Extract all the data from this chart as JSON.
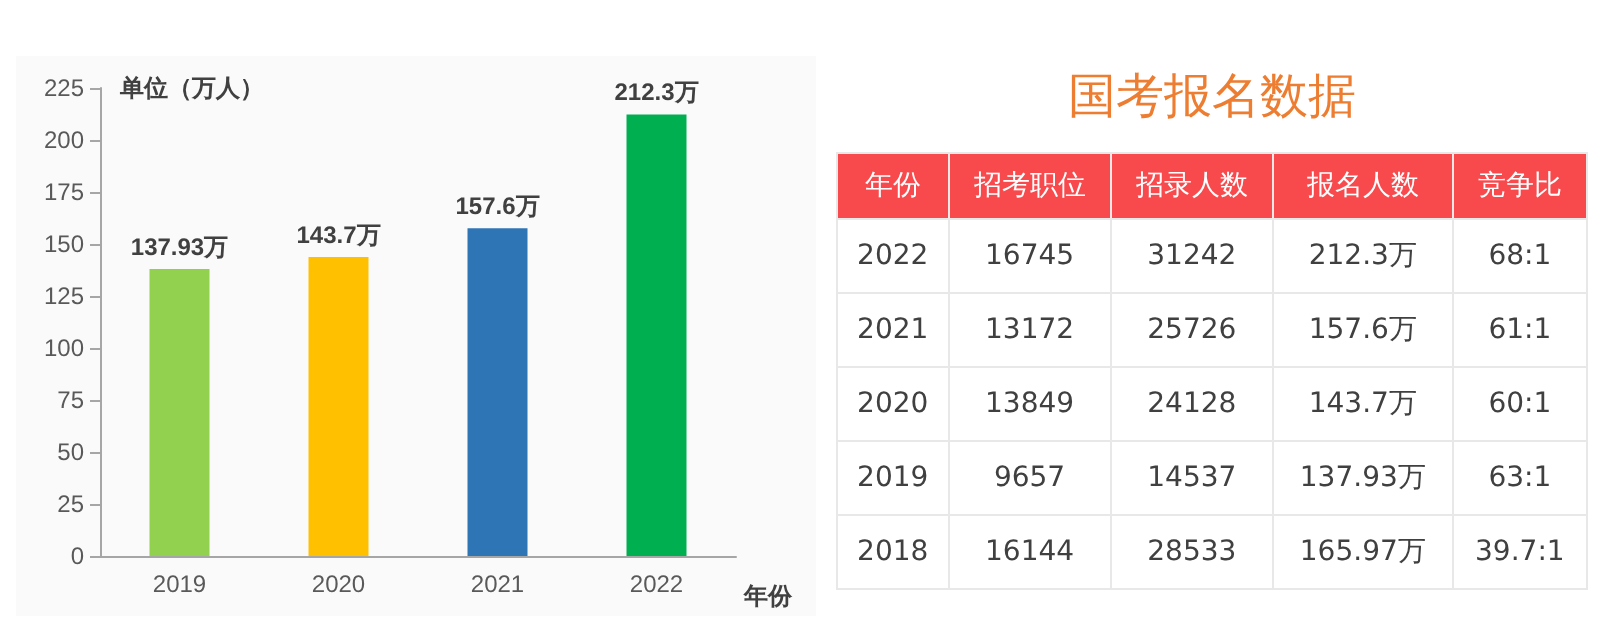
{
  "chart_data": [
    {
      "type": "bar",
      "categories": [
        "2019",
        "2020",
        "2021",
        "2022"
      ],
      "values": [
        137.93,
        143.7,
        157.6,
        212.3
      ],
      "colors": [
        "#92d050",
        "#ffc000",
        "#2e75b6",
        "#00b050"
      ],
      "value_labels": [
        "137.93万",
        "143.7万",
        "157.6万",
        "212.3万"
      ],
      "ylabel": "单位（万人）",
      "xlabel": "年份",
      "ylim": [
        0,
        225
      ],
      "yticks": [
        0,
        25,
        50,
        75,
        100,
        125,
        150,
        175,
        200,
        225
      ],
      "grid": false
    },
    {
      "type": "heatmap",
      "title": "国考报名数据",
      "ylabel": "年份",
      "categories": [
        "招考职位",
        "招录人数",
        "报名人数",
        "竞争比"
      ],
      "y_categories": [
        "2022",
        "2021",
        "2020",
        "2019",
        "2018"
      ],
      "cells": [
        [
          null,
          null,
          null,
          null
        ],
        [
          null,
          null,
          null,
          null
        ],
        [
          null,
          null,
          null,
          null
        ],
        [
          null,
          null,
          null,
          null
        ],
        [
          null,
          null,
          null,
          null
        ]
      ],
      "cell_labels": [
        [
          "16745",
          "31242",
          "212.3万",
          "68:1"
        ],
        [
          "13172",
          "25726",
          "157.6万",
          "61:1"
        ],
        [
          "13849",
          "24128",
          "143.7万",
          "60:1"
        ],
        [
          "9657",
          "14537",
          "137.93万",
          "63:1"
        ],
        [
          "16144",
          "28533",
          "165.97万",
          "39.7:1"
        ]
      ]
    }
  ]
}
